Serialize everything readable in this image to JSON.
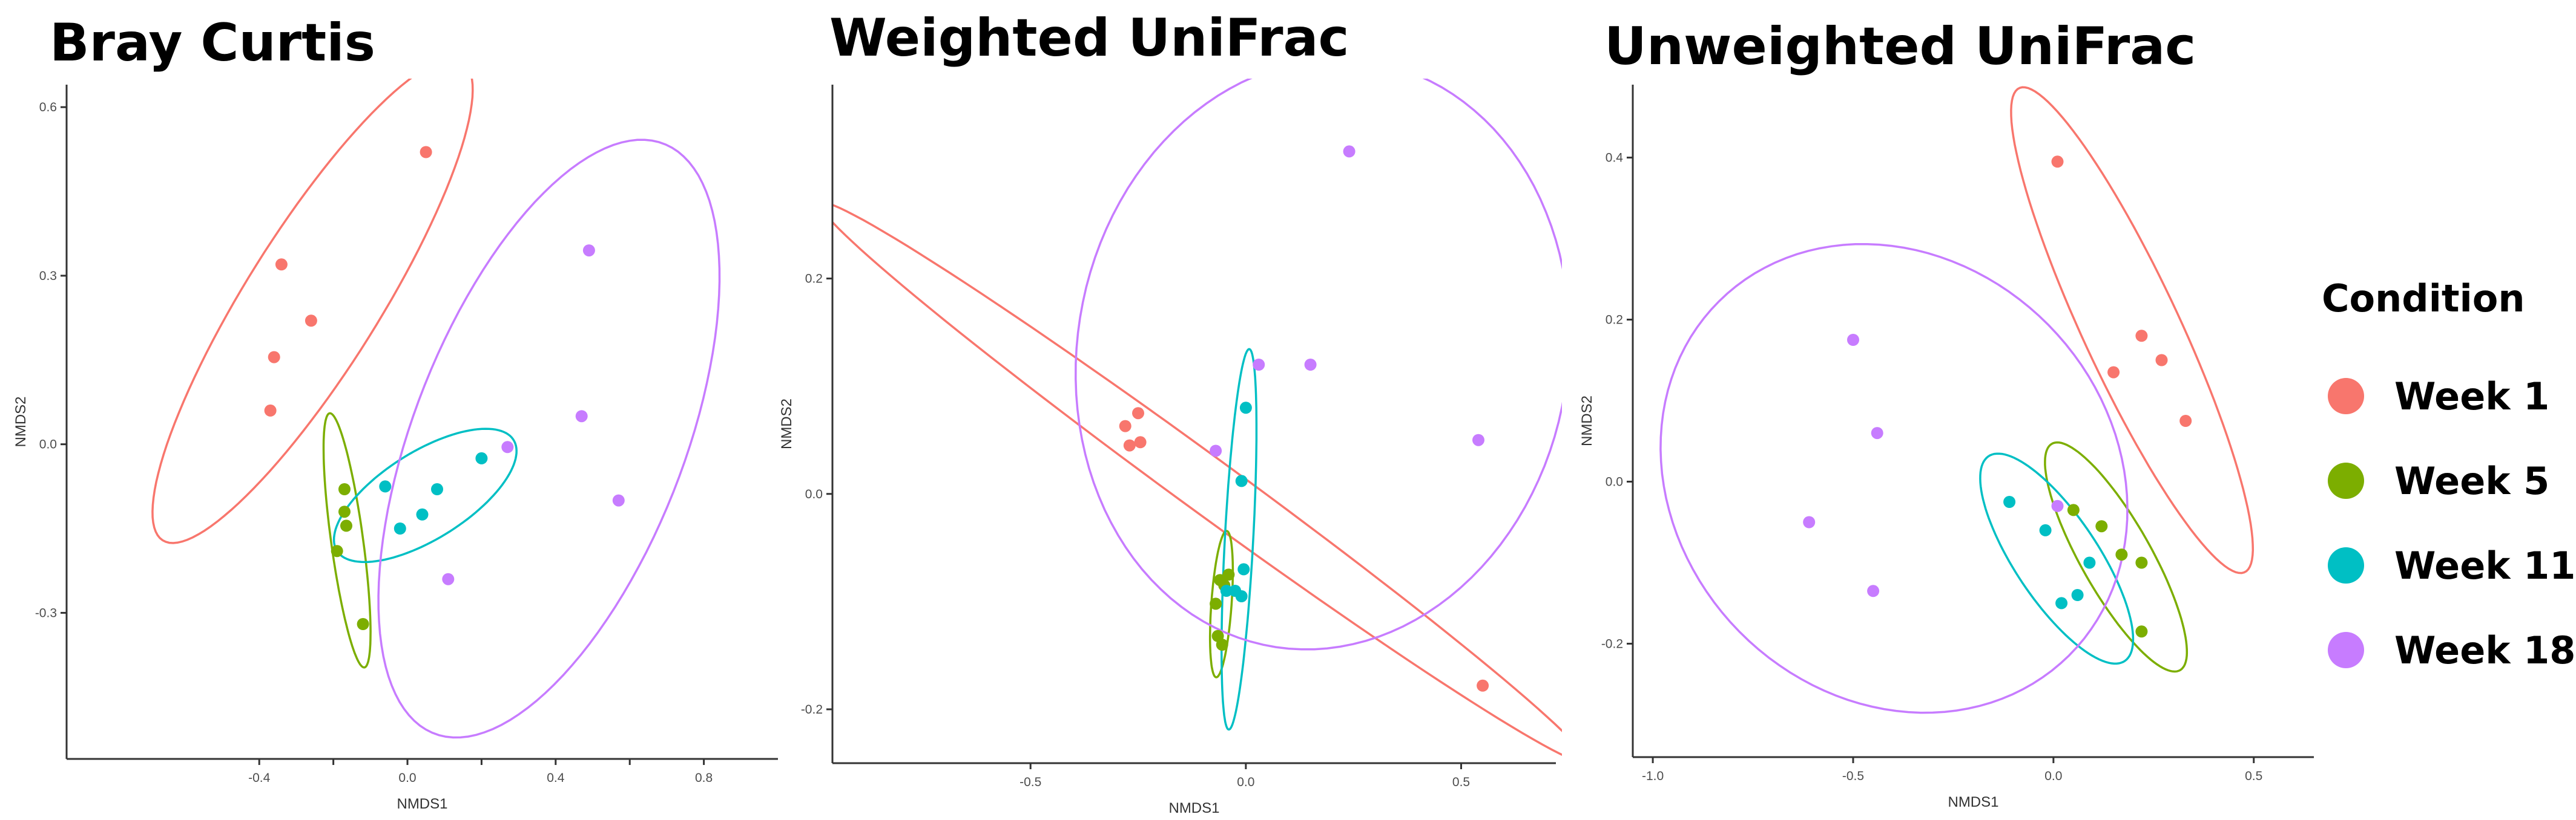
{
  "legend": {
    "title": "Condition",
    "items": [
      {
        "label": "Week 1",
        "color": "#F8766D"
      },
      {
        "label": "Week 5",
        "color": "#7CAE00"
      },
      {
        "label": "Week 11",
        "color": "#00BFC4"
      },
      {
        "label": "Week 18",
        "color": "#C77CFF"
      }
    ]
  },
  "chart_data": [
    {
      "type": "scatter",
      "title": "Bray Curtis",
      "xlabel": "NMDS1",
      "ylabel": "NMDS2",
      "xlim": [
        -0.92,
        1.0
      ],
      "ylim": [
        -0.56,
        0.64
      ],
      "xticks": [
        -0.4,
        -0.2,
        0.0,
        0.2,
        0.4,
        0.6,
        0.8
      ],
      "xtick_labels": [
        "-0.4",
        "",
        "0.0",
        "",
        "0.4",
        "",
        "0.8"
      ],
      "yticks": [
        -0.3,
        0.0,
        0.3,
        0.6
      ],
      "ytick_labels": [
        "-0.3",
        "0.0",
        "0.3",
        "0.6"
      ],
      "ellipses": true,
      "series": [
        {
          "name": "Week 1",
          "x": [
            0.05,
            -0.34,
            -0.26,
            -0.36,
            -0.37
          ],
          "y": [
            0.52,
            0.32,
            0.22,
            0.155,
            0.06
          ]
        },
        {
          "name": "Week 5",
          "x": [
            -0.17,
            -0.17,
            -0.165,
            -0.19,
            -0.12
          ],
          "y": [
            -0.08,
            -0.12,
            -0.145,
            -0.19,
            -0.32
          ]
        },
        {
          "name": "Week 11",
          "x": [
            -0.06,
            0.2,
            0.08,
            0.04,
            -0.02
          ],
          "y": [
            -0.075,
            -0.025,
            -0.08,
            -0.125,
            -0.15
          ]
        },
        {
          "name": "Week 18",
          "x": [
            0.49,
            0.47,
            0.57,
            0.27,
            0.11
          ],
          "y": [
            0.345,
            0.05,
            -0.1,
            -0.005,
            -0.24
          ]
        }
      ]
    },
    {
      "type": "scatter",
      "title": "Weighted UniFrac",
      "xlabel": "NMDS1",
      "ylabel": "NMDS2",
      "xlim": [
        -0.96,
        0.72
      ],
      "ylim": [
        -0.25,
        0.38
      ],
      "xticks": [
        -0.5,
        0.0,
        0.5
      ],
      "xtick_labels": [
        "-0.5",
        "0.0",
        "0.5"
      ],
      "yticks": [
        -0.2,
        0.0,
        0.2
      ],
      "ytick_labels": [
        "-0.2",
        "0.0",
        "0.2"
      ],
      "ellipses": true,
      "series": [
        {
          "name": "Week 1",
          "x": [
            -0.25,
            -0.28,
            -0.245,
            -0.27,
            0.55
          ],
          "y": [
            0.075,
            0.063,
            0.048,
            0.045,
            -0.178
          ]
        },
        {
          "name": "Week 5",
          "x": [
            -0.04,
            -0.06,
            -0.07,
            -0.065,
            -0.055,
            -0.05
          ],
          "y": [
            -0.075,
            -0.08,
            -0.102,
            -0.132,
            -0.14,
            -0.085
          ]
        },
        {
          "name": "Week 11",
          "x": [
            0.0,
            -0.01,
            -0.005,
            -0.025,
            -0.045,
            -0.01
          ],
          "y": [
            0.08,
            0.012,
            -0.07,
            -0.09,
            -0.09,
            -0.095
          ]
        },
        {
          "name": "Week 18",
          "x": [
            0.24,
            0.15,
            0.03,
            0.54,
            -0.07
          ],
          "y": [
            0.318,
            0.12,
            0.12,
            0.05,
            0.04
          ]
        }
      ]
    },
    {
      "type": "scatter",
      "title": "Unweighted UniFrac",
      "xlabel": "NMDS1",
      "ylabel": "NMDS2",
      "xlim": [
        -1.05,
        0.65
      ],
      "ylim": [
        -0.34,
        0.49
      ],
      "xticks": [
        -1.0,
        -0.5,
        0.0,
        0.5
      ],
      "xtick_labels": [
        "-1.0",
        "-0.5",
        "0.0",
        "0.5"
      ],
      "yticks": [
        -0.2,
        0.0,
        0.2,
        0.4
      ],
      "ytick_labels": [
        "-0.2",
        "0.0",
        "0.2",
        "0.4"
      ],
      "ellipses": true,
      "series": [
        {
          "name": "Week 1",
          "x": [
            0.01,
            0.22,
            0.27,
            0.15,
            0.33
          ],
          "y": [
            0.395,
            0.18,
            0.15,
            0.135,
            0.075
          ]
        },
        {
          "name": "Week 5",
          "x": [
            0.12,
            0.05,
            0.17,
            0.22,
            0.22
          ],
          "y": [
            -0.055,
            -0.035,
            -0.09,
            -0.1,
            -0.185
          ]
        },
        {
          "name": "Week 11",
          "x": [
            -0.11,
            -0.02,
            0.09,
            0.02,
            0.06
          ],
          "y": [
            -0.025,
            -0.06,
            -0.1,
            -0.15,
            -0.14
          ]
        },
        {
          "name": "Week 18",
          "x": [
            -0.5,
            -0.44,
            -0.61,
            -0.45,
            0.01
          ],
          "y": [
            0.175,
            0.06,
            -0.05,
            -0.135,
            -0.03
          ]
        }
      ]
    }
  ]
}
